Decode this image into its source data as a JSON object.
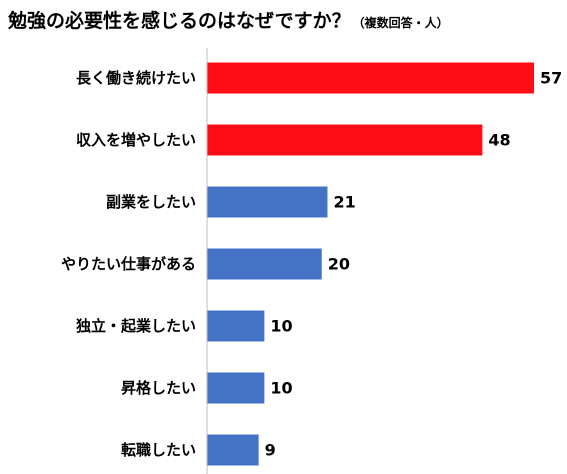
{
  "title": "勉強の必要性を感じるのはなぜですか？",
  "subtitle": "（複数回答・人）",
  "colors": {
    "highlight": "#ff0d17",
    "normal": "#4472c4",
    "axis": "#bfbfbf"
  },
  "chart_data": {
    "type": "bar",
    "orientation": "horizontal",
    "title": "勉強の必要性を感じるのはなぜですか？",
    "subtitle": "（複数回答・人）",
    "categories": [
      "長く働き続けたい",
      "収入を増やしたい",
      "副業をしたい",
      "やりたい仕事がある",
      "独立・起業したい",
      "昇格したい",
      "転職したい"
    ],
    "values": [
      57,
      48,
      21,
      20,
      10,
      10,
      9
    ],
    "highlighted": [
      true,
      true,
      false,
      false,
      false,
      false,
      false
    ],
    "xlim": [
      0,
      57
    ],
    "grid": false,
    "legend": "none"
  }
}
